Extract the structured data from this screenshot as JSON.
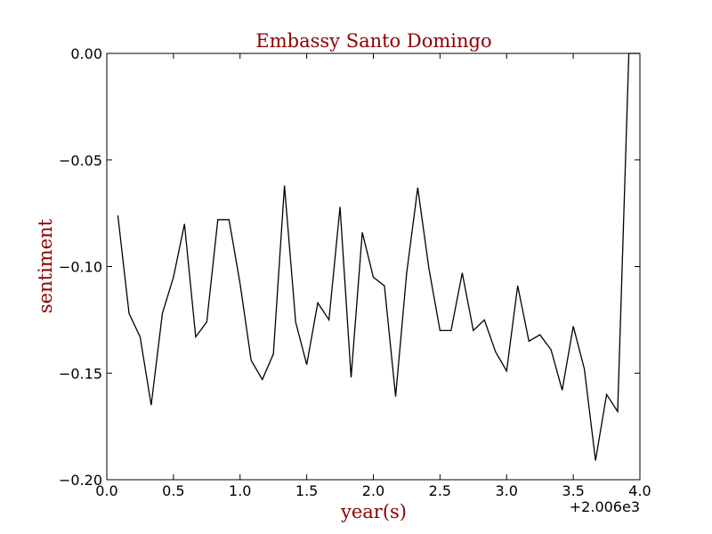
{
  "chart_data": {
    "type": "line",
    "title": "Embassy Santo Domingo",
    "xlabel": "year(s)",
    "ylabel": "sentiment",
    "x_offset_text": "+2.006e3",
    "label_color": "#8b0000",
    "line_color": "#000000",
    "xlim": [
      0.0,
      4.0
    ],
    "ylim": [
      -0.2,
      0.0
    ],
    "x_ticks": [
      0.0,
      0.5,
      1.0,
      1.5,
      2.0,
      2.5,
      3.0,
      3.5,
      4.0
    ],
    "x_tick_labels": [
      "0.0",
      "0.5",
      "1.0",
      "1.5",
      "2.0",
      "2.5",
      "3.0",
      "3.5",
      "4.0"
    ],
    "y_ticks": [
      0.0,
      -0.05,
      -0.1,
      -0.15,
      -0.2
    ],
    "y_tick_labels": [
      "0.00",
      "−0.05",
      "−0.10",
      "−0.15",
      "−0.20"
    ],
    "grid": false,
    "series": [
      {
        "x": [
          0.083,
          0.167,
          0.25,
          0.333,
          0.417,
          0.5,
          0.583,
          0.667,
          0.75,
          0.833,
          0.917,
          1.0,
          1.083,
          1.167,
          1.25,
          1.333,
          1.417,
          1.5,
          1.583,
          1.667,
          1.75,
          1.833,
          1.917,
          2.0,
          2.083,
          2.167,
          2.25,
          2.333,
          2.417,
          2.5,
          2.583,
          2.667,
          2.75,
          2.833,
          2.917,
          3.0,
          3.083,
          3.167,
          3.25,
          3.333,
          3.417,
          3.5,
          3.583,
          3.667,
          3.75,
          3.833,
          3.917,
          4.0
        ],
        "y": [
          -0.076,
          -0.122,
          -0.133,
          -0.165,
          -0.122,
          -0.105,
          -0.08,
          -0.133,
          -0.126,
          -0.078,
          -0.078,
          -0.108,
          -0.144,
          -0.153,
          -0.141,
          -0.062,
          -0.126,
          -0.146,
          -0.117,
          -0.125,
          -0.072,
          -0.152,
          -0.084,
          -0.105,
          -0.109,
          -0.161,
          -0.103,
          -0.063,
          -0.101,
          -0.13,
          -0.13,
          -0.103,
          -0.13,
          -0.125,
          -0.14,
          -0.149,
          -0.109,
          -0.135,
          -0.132,
          -0.139,
          -0.158,
          -0.128,
          -0.148,
          -0.191,
          -0.16,
          -0.168,
          0.0,
          0.0
        ]
      }
    ]
  }
}
